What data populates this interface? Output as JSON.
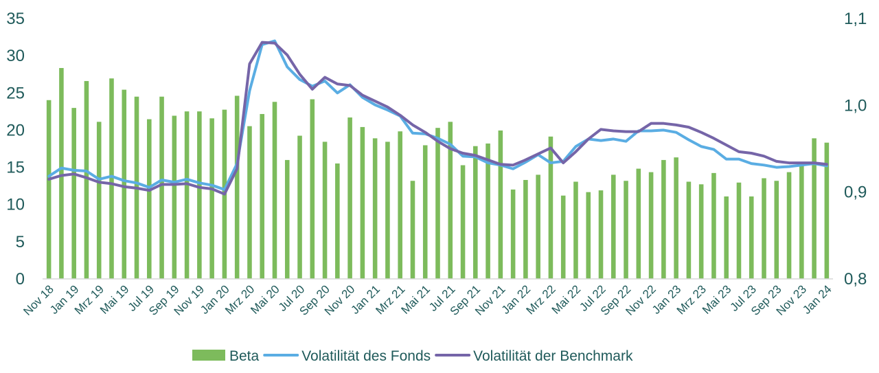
{
  "colors": {
    "beta": "#7dbb5c",
    "fonds": "#5aade3",
    "benchmark": "#7565a8",
    "axis_text": "#1f5a5a",
    "axis_line": "#d9d9d9"
  },
  "legend": [
    {
      "label": "Beta",
      "color_key": "beta",
      "shape": "box"
    },
    {
      "label": "Volatilität des Fonds",
      "color_key": "fonds",
      "shape": "line"
    },
    {
      "label": "Volatilität der Benchmark",
      "color_key": "benchmark",
      "shape": "line"
    }
  ],
  "chart_data": {
    "type": "bar",
    "legend_position": "bottom",
    "grid": false,
    "y_left": {
      "ticks": [
        "0",
        "5",
        "10",
        "15",
        "20",
        "25",
        "30",
        "35"
      ],
      "lim": [
        0,
        35
      ]
    },
    "y_right": {
      "ticks": [
        "0,8",
        "0,9",
        "1,0",
        "1,1"
      ],
      "lim": [
        0.8,
        1.1
      ]
    },
    "x_tick_labels": [
      "Nov 18",
      "Jan 19",
      "Mrz 19",
      "Mai 19",
      "Jul 19",
      "Sep 19",
      "Nov 19",
      "Jan 20",
      "Mrz 20",
      "Mai 20",
      "Jul 20",
      "Sep 20",
      "Nov 20",
      "Jan 21",
      "Mrz 21",
      "Mai 21",
      "Jul 21",
      "Sep 21",
      "Nov 21",
      "Jan 22",
      "Mrz 22",
      "Mai 22",
      "Jul 22",
      "Sep 22",
      "Nov 22",
      "Jan 23",
      "Mrz 23",
      "Mai 23",
      "Jul 23",
      "Sep 23",
      "Nov 23",
      "Jan 24"
    ],
    "months": [
      "Nov 18",
      "Dez 18",
      "Jan 19",
      "Feb 19",
      "Mrz 19",
      "Apr 19",
      "Mai 19",
      "Jun 19",
      "Jul 19",
      "Aug 19",
      "Sep 19",
      "Okt 19",
      "Nov 19",
      "Dez 19",
      "Jan 20",
      "Feb 20",
      "Mrz 20",
      "Apr 20",
      "Mai 20",
      "Jun 20",
      "Jul 20",
      "Aug 20",
      "Sep 20",
      "Okt 20",
      "Nov 20",
      "Dez 20",
      "Jan 21",
      "Feb 21",
      "Mrz 21",
      "Apr 21",
      "Mai 21",
      "Jun 21",
      "Jul 21",
      "Aug 21",
      "Sep 21",
      "Okt 21",
      "Nov 21",
      "Dez 21",
      "Jan 22",
      "Feb 22",
      "Mrz 22",
      "Apr 22",
      "Mai 22",
      "Jun 22",
      "Jul 22",
      "Aug 22",
      "Sep 22",
      "Okt 22",
      "Nov 22",
      "Dez 22",
      "Jan 23",
      "Feb 23",
      "Mrz 23",
      "Apr 23",
      "Mai 23",
      "Jun 23",
      "Jul 23",
      "Aug 23",
      "Sep 23",
      "Okt 23",
      "Nov 23",
      "Dez 23",
      "Jan 24"
    ],
    "series": [
      {
        "name": "Beta",
        "type": "bar",
        "axis": "right",
        "values": [
          1.006,
          1.043,
          0.997,
          1.028,
          0.981,
          1.031,
          1.018,
          1.01,
          0.984,
          1.01,
          0.988,
          0.993,
          0.993,
          0.985,
          0.995,
          1.011,
          0.976,
          0.99,
          1.004,
          0.937,
          0.965,
          1.007,
          0.958,
          0.933,
          0.986,
          0.975,
          0.962,
          0.958,
          0.97,
          0.913,
          0.954,
          0.974,
          0.981,
          0.931,
          0.953,
          0.956,
          0.971,
          0.903,
          0.914,
          0.92,
          0.964,
          0.896,
          0.912,
          0.9,
          0.902,
          0.92,
          0.913,
          0.927,
          0.923,
          0.937,
          0.94,
          0.912,
          0.909,
          0.922,
          0.895,
          0.911,
          0.895,
          0.916,
          0.913,
          0.923,
          0.931,
          0.962,
          0.957
        ]
      },
      {
        "name": "Volatilität des Fonds",
        "type": "line",
        "axis": "left",
        "values": [
          13.8,
          14.9,
          14.6,
          14.5,
          13.4,
          13.8,
          13.2,
          12.9,
          12.3,
          13.3,
          13.0,
          13.4,
          12.9,
          12.6,
          12.0,
          15.5,
          25.3,
          31.5,
          32.0,
          28.5,
          26.8,
          25.9,
          26.6,
          25.0,
          26.1,
          24.4,
          23.4,
          22.7,
          21.9,
          19.6,
          19.5,
          18.9,
          18.1,
          16.5,
          16.4,
          15.6,
          15.3,
          14.8,
          15.7,
          16.7,
          15.6,
          15.8,
          17.8,
          18.8,
          18.6,
          18.8,
          18.5,
          19.9,
          19.9,
          20.0,
          19.7,
          18.7,
          17.8,
          17.4,
          16.1,
          16.1,
          15.5,
          15.3,
          15.0,
          15.1,
          15.3,
          15.5,
          15.2
        ]
      },
      {
        "name": "Volatilität der Benchmark",
        "type": "line",
        "axis": "left",
        "values": [
          13.4,
          13.9,
          14.1,
          13.6,
          13.0,
          12.8,
          12.4,
          12.2,
          11.9,
          12.7,
          12.7,
          12.8,
          12.3,
          12.1,
          11.4,
          14.8,
          28.9,
          31.8,
          31.7,
          30.1,
          27.5,
          25.5,
          27.1,
          26.2,
          26.0,
          24.7,
          23.9,
          23.1,
          22.0,
          20.7,
          19.7,
          18.5,
          17.5,
          16.9,
          16.6,
          16.0,
          15.4,
          15.3,
          16.0,
          16.8,
          17.6,
          15.6,
          17.1,
          18.8,
          20.1,
          19.9,
          19.8,
          19.8,
          20.9,
          20.9,
          20.7,
          20.4,
          19.7,
          18.9,
          18.0,
          17.1,
          16.9,
          16.5,
          15.8,
          15.6,
          15.6,
          15.6,
          15.4
        ]
      }
    ]
  }
}
